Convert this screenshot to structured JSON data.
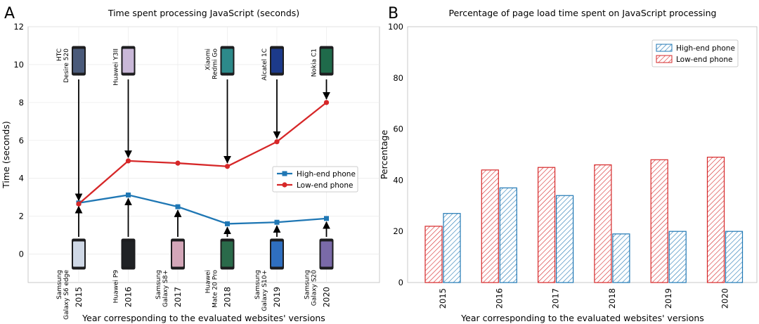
{
  "chart_data": [
    {
      "panel_letter": "A",
      "type": "line",
      "title": "Time spent processing JavaScript (seconds)",
      "xlabel": "Year corresponding to the evaluated websites' versions",
      "ylabel": "Time (seconds)",
      "ylim": [
        -1.5,
        12
      ],
      "yticks": [
        0,
        2,
        4,
        6,
        8,
        10,
        12
      ],
      "categories": [
        "2015",
        "2016",
        "2017",
        "2018",
        "2019",
        "2020"
      ],
      "grid": true,
      "legend_position": "center-right",
      "series": [
        {
          "name": "High-end phone",
          "color": "#1f77b4",
          "marker": "square",
          "values": [
            2.7,
            3.12,
            2.5,
            1.6,
            1.68,
            1.88
          ]
        },
        {
          "name": "Low-end phone",
          "color": "#d62728",
          "marker": "circle",
          "values": [
            2.65,
            4.92,
            4.8,
            4.63,
            5.93,
            8.0
          ]
        }
      ],
      "annotations": {
        "low_end_devices": [
          {
            "year": "2015",
            "lines": [
              "HTC",
              "Desire 520"
            ]
          },
          {
            "year": "2016",
            "lines": [
              "Huawei Y3II"
            ]
          },
          {
            "year": "2018",
            "lines": [
              "Xiaomi",
              "Redmi Go"
            ]
          },
          {
            "year": "2019",
            "lines": [
              "Alcatel 1C"
            ]
          },
          {
            "year": "2020",
            "lines": [
              "Nokia C1"
            ]
          }
        ],
        "high_end_devices": [
          {
            "year": "2015",
            "lines": [
              "Samsung",
              "Galaxy S6 edge"
            ]
          },
          {
            "year": "2016",
            "lines": [
              "Huawei P9"
            ]
          },
          {
            "year": "2017",
            "lines": [
              "Samsung",
              "Galaxy S8+"
            ]
          },
          {
            "year": "2018",
            "lines": [
              "Huawei",
              "Mate 20 Pro"
            ]
          },
          {
            "year": "2019",
            "lines": [
              "Samsung",
              "Galaxy S10+"
            ]
          },
          {
            "year": "2020",
            "lines": [
              "Samsung",
              "Galaxy S20"
            ]
          }
        ]
      }
    },
    {
      "panel_letter": "B",
      "type": "bar",
      "title": "Percentage of page load time spent on JavaScript processing",
      "xlabel": "Year corresponding to the evaluated websites' versions",
      "ylabel": "Percentage",
      "ylim": [
        0,
        100
      ],
      "yticks": [
        0,
        20,
        40,
        60,
        80,
        100
      ],
      "categories": [
        "2015",
        "2016",
        "2017",
        "2018",
        "2019",
        "2020"
      ],
      "legend_position": "top-right",
      "hatch": "diagonal",
      "series": [
        {
          "name": "High-end phone",
          "color": "#1f77b4",
          "values": [
            27,
            37,
            34,
            19,
            20,
            20
          ]
        },
        {
          "name": "Low-end phone",
          "color": "#d62728",
          "values": [
            22,
            44,
            45,
            46,
            48,
            49
          ]
        }
      ]
    }
  ]
}
